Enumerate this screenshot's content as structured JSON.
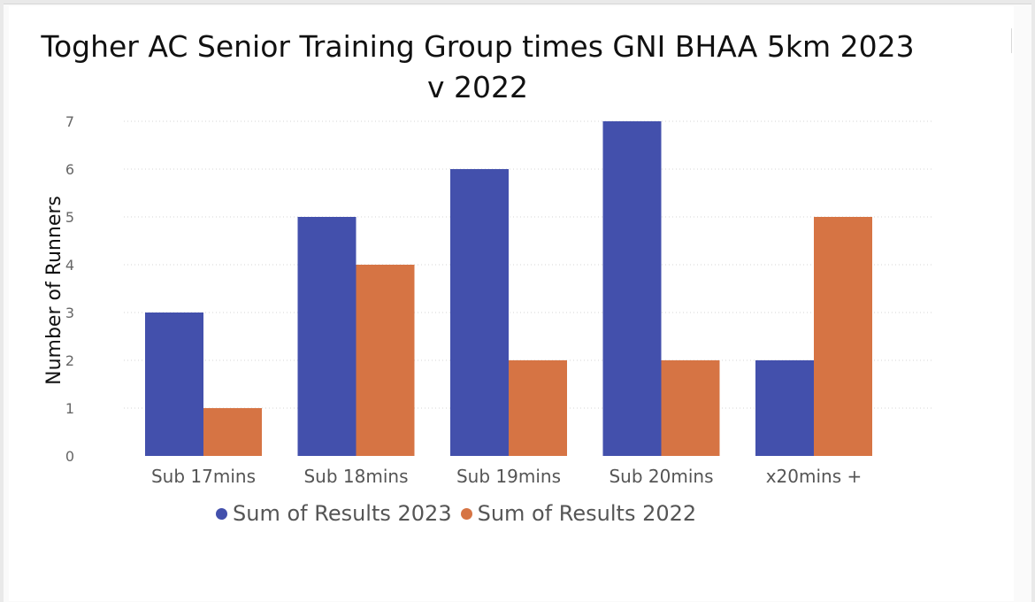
{
  "chart_data": {
    "type": "bar",
    "title": "Togher AC Senior Training Group times GNI BHAA 5km 2023 v 2022",
    "xlabel": "",
    "ylabel": "Number of Runners",
    "ylim": [
      0,
      7
    ],
    "yticks": [
      "0",
      "1",
      "2",
      "3",
      "4",
      "5",
      "6",
      "7"
    ],
    "grid": true,
    "legend_position": "bottom",
    "categories": [
      "Sub 17mins",
      "Sub 18mins",
      "Sub 19mins",
      "Sub 20mins",
      "x20mins +"
    ],
    "series": [
      {
        "name": "Sum of Results 2023",
        "color": "#4350ac",
        "values": [
          3,
          5,
          6,
          7,
          2
        ]
      },
      {
        "name": "Sum of Results 2022",
        "color": "#d67444",
        "values": [
          1,
          4,
          2,
          2,
          5
        ]
      }
    ]
  }
}
